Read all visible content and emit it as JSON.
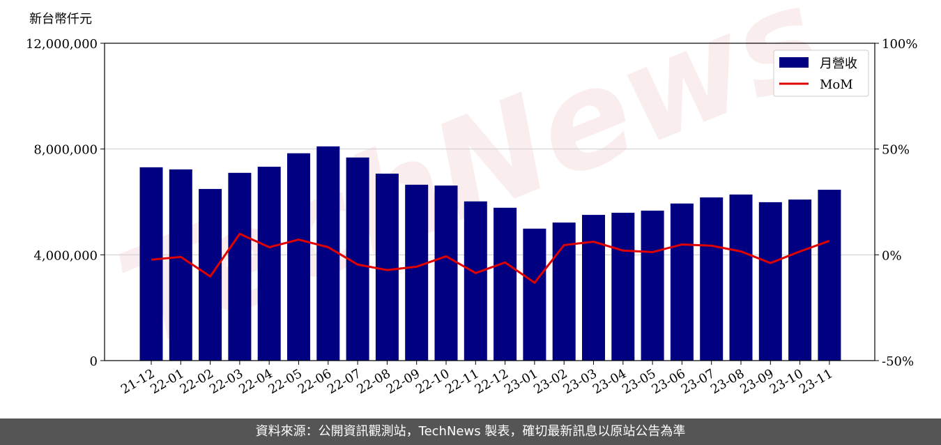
{
  "chart_data": {
    "type": "bar_line",
    "y_label": "新台幣仟元",
    "watermark": "TechNews",
    "categories": [
      "21-12",
      "22-01",
      "22-02",
      "22-03",
      "22-04",
      "22-05",
      "22-06",
      "22-07",
      "22-08",
      "22-09",
      "22-10",
      "22-11",
      "22-12",
      "23-01",
      "23-02",
      "23-03",
      "23-04",
      "23-05",
      "23-06",
      "23-07",
      "23-08",
      "23-09",
      "23-10",
      "23-11"
    ],
    "series": [
      {
        "name": "月營收",
        "color": "#000080",
        "type": "bar",
        "values": [
          7310000,
          7230000,
          6490000,
          7100000,
          7330000,
          7840000,
          8100000,
          7680000,
          7070000,
          6650000,
          6620000,
          6020000,
          5780000,
          4990000,
          5220000,
          5510000,
          5590000,
          5670000,
          5940000,
          6170000,
          6280000,
          5990000,
          6090000,
          6460000
        ]
      },
      {
        "name": "MoM",
        "color": "#e00000",
        "type": "line",
        "axis": "y2",
        "values": [
          -2.3,
          -1.0,
          -10.2,
          9.9,
          3.6,
          7.2,
          3.6,
          -4.6,
          -7.2,
          -5.6,
          -0.7,
          -8.6,
          -3.6,
          -13.2,
          4.6,
          6.2,
          2.0,
          1.3,
          4.9,
          4.3,
          1.6,
          -3.9,
          1.6,
          6.6
        ]
      }
    ],
    "ylim": [
      0,
      12000000
    ],
    "yticks": [
      0,
      {
        "value": 4000000,
        "label": "4,000,000"
      },
      {
        "value": 8000000,
        "label": "8,000,000"
      },
      {
        "value": 12000000,
        "label": "12,000,000"
      }
    ],
    "y2lim": [
      -50,
      100
    ],
    "y2ticks": [
      {
        "value": -50,
        "label": "-50%"
      },
      {
        "value": 0,
        "label": "0%"
      },
      {
        "value": 50,
        "label": "50%"
      },
      {
        "value": 100,
        "label": "100%"
      }
    ],
    "grid": true,
    "legend": "upper right"
  },
  "footer": "資料來源：公開資訊觀測站，TechNews 製表，確切最新訊息以原站公告為準"
}
